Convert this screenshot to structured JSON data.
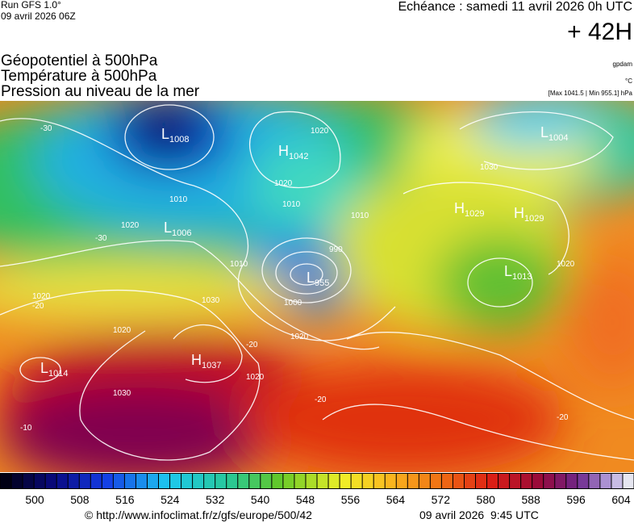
{
  "header": {
    "run": "Run GFS 1.0°",
    "run_date": "09 avril 2026 06Z",
    "echeance": "Echéance : samedi 11 avril 2026 0h UTC",
    "lead": "+ 42H",
    "fields": [
      "Géopotentiel à 500hPa",
      "Température à 500hPa",
      "Pression au niveau de la mer"
    ],
    "units": [
      "gpdam",
      "°C",
      "[Max 1041.5 | Min 955.1] hPa"
    ]
  },
  "systems": [
    {
      "letter": "L",
      "value": 1008
    },
    {
      "letter": "H",
      "value": 1042
    },
    {
      "letter": "L",
      "value": 1006
    },
    {
      "letter": "L",
      "value": 955
    },
    {
      "letter": "H",
      "value": 1029
    },
    {
      "letter": "H",
      "value": 1029
    },
    {
      "letter": "L",
      "value": 1013
    },
    {
      "letter": "L",
      "value": 1014
    },
    {
      "letter": "H",
      "value": 1037
    },
    {
      "letter": "L",
      "value": 1004
    }
  ],
  "contour_labels": [
    1020,
    1010,
    1020,
    1010,
    1010,
    1020,
    1000,
    990,
    1010,
    1020,
    1030,
    1020,
    1030,
    1020,
    1030,
    1020,
    1020,
    -30,
    -30,
    -20,
    -20,
    -20,
    -10,
    -20
  ],
  "colorbar": {
    "ticks": [
      500,
      508,
      516,
      524,
      532,
      540,
      548,
      556,
      564,
      572,
      580,
      588,
      596,
      604
    ]
  },
  "footer": {
    "url": "© http://www.infoclimat.fr/z/gfs/europe/500/42",
    "date": "09 avril 2026  9:45 UTC"
  }
}
